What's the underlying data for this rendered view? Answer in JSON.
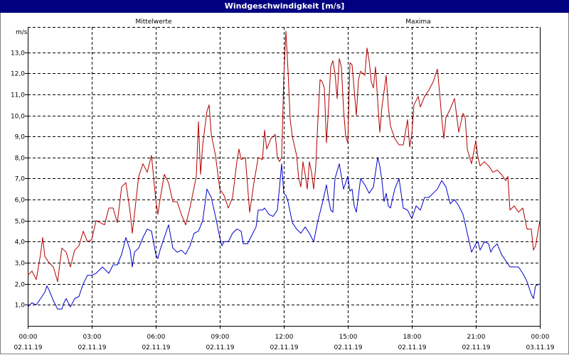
{
  "window": {
    "title": "Windgeschwindigkeit [m/s]"
  },
  "chart_data": {
    "type": "line",
    "title": "Windgeschwindigkeit [m/s]",
    "ylabel": "m/s",
    "xlabel": "",
    "ylim": [
      0,
      14.2
    ],
    "xlim_hours": [
      0,
      24
    ],
    "y_ticks": [
      1,
      2,
      3,
      4,
      5,
      6,
      7,
      8,
      9,
      10,
      11,
      12,
      13
    ],
    "y_tick_labels": [
      "1,0",
      "2,0",
      "3,0",
      "4,0",
      "5,0",
      "6,0",
      "7,0",
      "8,0",
      "9,0",
      "10,0",
      "11,0",
      "12,0",
      "13,0"
    ],
    "x_tick_times": [
      "00:00",
      "03:00",
      "06:00",
      "09:00",
      "12:00",
      "15:00",
      "18:00",
      "21:00",
      "00:00"
    ],
    "x_tick_dates": [
      "02.11.19",
      "02.11.19",
      "02.11.19",
      "02.11.19",
      "02.11.19",
      "02.11.19",
      "02.11.19",
      "02.11.19",
      "03.11.19"
    ],
    "grid": true,
    "colors": {
      "mittelwerte": "#0000cc",
      "maxima": "#b40000",
      "title_bar": "#000080"
    },
    "series": [
      {
        "name": "Mittelwerte",
        "color": "#0000cc",
        "points": [
          [
            0.0,
            0.9
          ],
          [
            0.2,
            1.1
          ],
          [
            0.4,
            1.0
          ],
          [
            0.6,
            1.3
          ],
          [
            0.8,
            1.6
          ],
          [
            0.9,
            1.9
          ],
          [
            1.0,
            1.7
          ],
          [
            1.2,
            1.2
          ],
          [
            1.4,
            0.8
          ],
          [
            1.6,
            0.8
          ],
          [
            1.7,
            1.1
          ],
          [
            1.8,
            1.3
          ],
          [
            2.0,
            0.9
          ],
          [
            2.2,
            1.3
          ],
          [
            2.4,
            1.4
          ],
          [
            2.6,
            2.0
          ],
          [
            2.8,
            2.4
          ],
          [
            3.0,
            2.4
          ],
          [
            3.2,
            2.5
          ],
          [
            3.4,
            2.7
          ],
          [
            3.5,
            2.8
          ],
          [
            3.6,
            2.7
          ],
          [
            3.8,
            2.5
          ],
          [
            4.0,
            2.9
          ],
          [
            4.2,
            2.9
          ],
          [
            4.4,
            3.4
          ],
          [
            4.6,
            4.2
          ],
          [
            4.8,
            3.6
          ],
          [
            4.9,
            2.8
          ],
          [
            5.0,
            3.5
          ],
          [
            5.2,
            3.7
          ],
          [
            5.4,
            4.2
          ],
          [
            5.6,
            4.6
          ],
          [
            5.8,
            4.5
          ],
          [
            6.0,
            3.4
          ],
          [
            6.1,
            3.2
          ],
          [
            6.2,
            3.6
          ],
          [
            6.4,
            4.2
          ],
          [
            6.6,
            4.8
          ],
          [
            6.8,
            3.7
          ],
          [
            7.0,
            3.5
          ],
          [
            7.2,
            3.6
          ],
          [
            7.4,
            3.4
          ],
          [
            7.6,
            3.8
          ],
          [
            7.8,
            4.4
          ],
          [
            8.0,
            4.5
          ],
          [
            8.2,
            5.0
          ],
          [
            8.4,
            6.5
          ],
          [
            8.6,
            6.1
          ],
          [
            8.8,
            5.2
          ],
          [
            9.0,
            4.2
          ],
          [
            9.1,
            3.8
          ],
          [
            9.2,
            4.0
          ],
          [
            9.4,
            4.0
          ],
          [
            9.6,
            4.4
          ],
          [
            9.8,
            4.6
          ],
          [
            10.0,
            4.5
          ],
          [
            10.1,
            3.9
          ],
          [
            10.3,
            3.9
          ],
          [
            10.5,
            4.3
          ],
          [
            10.7,
            4.7
          ],
          [
            10.8,
            5.5
          ],
          [
            11.0,
            5.5
          ],
          [
            11.1,
            5.6
          ],
          [
            11.3,
            5.3
          ],
          [
            11.5,
            5.2
          ],
          [
            11.7,
            5.5
          ],
          [
            11.9,
            7.7
          ],
          [
            12.0,
            6.3
          ],
          [
            12.1,
            6.2
          ],
          [
            12.2,
            5.9
          ],
          [
            12.4,
            4.9
          ],
          [
            12.6,
            4.6
          ],
          [
            12.8,
            4.4
          ],
          [
            13.0,
            4.7
          ],
          [
            13.2,
            4.4
          ],
          [
            13.4,
            4.0
          ],
          [
            13.6,
            5.0
          ],
          [
            13.8,
            5.8
          ],
          [
            14.0,
            6.7
          ],
          [
            14.1,
            6.0
          ],
          [
            14.2,
            5.5
          ],
          [
            14.3,
            5.4
          ],
          [
            14.4,
            7.0
          ],
          [
            14.6,
            7.7
          ],
          [
            14.8,
            6.5
          ],
          [
            15.0,
            7.1
          ],
          [
            15.1,
            6.4
          ],
          [
            15.2,
            6.5
          ],
          [
            15.3,
            5.7
          ],
          [
            15.4,
            5.4
          ],
          [
            15.6,
            7.0
          ],
          [
            15.8,
            6.7
          ],
          [
            16.0,
            6.3
          ],
          [
            16.2,
            6.6
          ],
          [
            16.4,
            8.0
          ],
          [
            16.5,
            7.6
          ],
          [
            16.6,
            6.9
          ],
          [
            16.7,
            5.9
          ],
          [
            16.8,
            6.3
          ],
          [
            16.9,
            5.7
          ],
          [
            17.0,
            5.6
          ],
          [
            17.2,
            6.5
          ],
          [
            17.4,
            7.0
          ],
          [
            17.6,
            5.6
          ],
          [
            17.8,
            5.5
          ],
          [
            18.0,
            5.1
          ],
          [
            18.2,
            5.7
          ],
          [
            18.4,
            5.5
          ],
          [
            18.6,
            6.1
          ],
          [
            18.8,
            6.1
          ],
          [
            19.0,
            6.3
          ],
          [
            19.2,
            6.5
          ],
          [
            19.4,
            6.9
          ],
          [
            19.6,
            6.6
          ],
          [
            19.8,
            5.8
          ],
          [
            20.0,
            6.0
          ],
          [
            20.2,
            5.7
          ],
          [
            20.4,
            5.3
          ],
          [
            20.6,
            4.4
          ],
          [
            20.8,
            3.5
          ],
          [
            21.0,
            3.9
          ],
          [
            21.1,
            4.0
          ],
          [
            21.2,
            3.6
          ],
          [
            21.4,
            4.0
          ],
          [
            21.6,
            3.9
          ],
          [
            21.7,
            3.5
          ],
          [
            21.8,
            3.7
          ],
          [
            22.0,
            3.9
          ],
          [
            22.2,
            3.4
          ],
          [
            22.4,
            3.1
          ],
          [
            22.6,
            2.8
          ],
          [
            22.8,
            2.8
          ],
          [
            23.0,
            2.8
          ],
          [
            23.2,
            2.5
          ],
          [
            23.4,
            2.1
          ],
          [
            23.6,
            1.5
          ],
          [
            23.7,
            1.3
          ],
          [
            23.8,
            1.9
          ],
          [
            24.0,
            2.0
          ]
        ]
      },
      {
        "name": "Maxima",
        "color": "#b40000",
        "points": [
          [
            0.0,
            2.4
          ],
          [
            0.2,
            2.6
          ],
          [
            0.4,
            2.2
          ],
          [
            0.6,
            3.4
          ],
          [
            0.7,
            4.2
          ],
          [
            0.8,
            3.3
          ],
          [
            1.0,
            3.0
          ],
          [
            1.2,
            2.8
          ],
          [
            1.4,
            2.1
          ],
          [
            1.6,
            3.7
          ],
          [
            1.8,
            3.5
          ],
          [
            2.0,
            2.8
          ],
          [
            2.2,
            3.6
          ],
          [
            2.4,
            3.8
          ],
          [
            2.6,
            4.5
          ],
          [
            2.8,
            4.0
          ],
          [
            3.0,
            4.1
          ],
          [
            3.2,
            5.0
          ],
          [
            3.4,
            4.9
          ],
          [
            3.6,
            4.8
          ],
          [
            3.8,
            5.6
          ],
          [
            4.0,
            5.6
          ],
          [
            4.2,
            4.9
          ],
          [
            4.4,
            6.6
          ],
          [
            4.6,
            6.8
          ],
          [
            4.8,
            5.4
          ],
          [
            4.9,
            4.4
          ],
          [
            5.0,
            5.3
          ],
          [
            5.2,
            7.1
          ],
          [
            5.4,
            7.7
          ],
          [
            5.6,
            7.3
          ],
          [
            5.8,
            8.1
          ],
          [
            6.0,
            6.0
          ],
          [
            6.1,
            5.3
          ],
          [
            6.2,
            6.0
          ],
          [
            6.4,
            7.2
          ],
          [
            6.6,
            6.8
          ],
          [
            6.8,
            5.9
          ],
          [
            7.0,
            5.9
          ],
          [
            7.2,
            5.3
          ],
          [
            7.4,
            4.8
          ],
          [
            7.6,
            5.6
          ],
          [
            7.8,
            6.6
          ],
          [
            7.9,
            7.1
          ],
          [
            8.0,
            9.7
          ],
          [
            8.1,
            7.2
          ],
          [
            8.2,
            8.6
          ],
          [
            8.4,
            10.2
          ],
          [
            8.5,
            10.5
          ],
          [
            8.6,
            9.1
          ],
          [
            8.8,
            8.1
          ],
          [
            9.0,
            6.5
          ],
          [
            9.2,
            6.2
          ],
          [
            9.4,
            5.6
          ],
          [
            9.6,
            6.1
          ],
          [
            9.8,
            7.8
          ],
          [
            9.9,
            8.4
          ],
          [
            10.0,
            7.9
          ],
          [
            10.2,
            8.0
          ],
          [
            10.4,
            5.4
          ],
          [
            10.6,
            6.8
          ],
          [
            10.8,
            8.0
          ],
          [
            11.0,
            7.9
          ],
          [
            11.1,
            9.3
          ],
          [
            11.2,
            8.4
          ],
          [
            11.4,
            8.9
          ],
          [
            11.6,
            9.1
          ],
          [
            11.7,
            8.0
          ],
          [
            11.8,
            7.8
          ],
          [
            11.9,
            8.0
          ],
          [
            12.0,
            11.8
          ],
          [
            12.1,
            14.0
          ],
          [
            12.2,
            12.1
          ],
          [
            12.3,
            9.8
          ],
          [
            12.4,
            9.0
          ],
          [
            12.6,
            8.1
          ],
          [
            12.7,
            7.0
          ],
          [
            12.8,
            6.6
          ],
          [
            12.9,
            7.8
          ],
          [
            13.0,
            7.2
          ],
          [
            13.1,
            6.5
          ],
          [
            13.2,
            7.8
          ],
          [
            13.3,
            7.3
          ],
          [
            13.4,
            6.5
          ],
          [
            13.5,
            7.6
          ],
          [
            13.6,
            9.8
          ],
          [
            13.7,
            11.7
          ],
          [
            13.8,
            11.6
          ],
          [
            13.9,
            11.3
          ],
          [
            14.0,
            8.7
          ],
          [
            14.1,
            10.4
          ],
          [
            14.2,
            12.3
          ],
          [
            14.3,
            12.6
          ],
          [
            14.4,
            12.0
          ],
          [
            14.5,
            10.8
          ],
          [
            14.6,
            12.7
          ],
          [
            14.7,
            12.3
          ],
          [
            14.8,
            10.3
          ],
          [
            14.9,
            9.0
          ],
          [
            15.0,
            8.7
          ],
          [
            15.1,
            12.5
          ],
          [
            15.2,
            12.4
          ],
          [
            15.3,
            11.2
          ],
          [
            15.4,
            10.0
          ],
          [
            15.5,
            11.7
          ],
          [
            15.6,
            12.1
          ],
          [
            15.8,
            11.9
          ],
          [
            15.9,
            13.2
          ],
          [
            16.0,
            12.6
          ],
          [
            16.1,
            11.6
          ],
          [
            16.2,
            11.3
          ],
          [
            16.3,
            12.3
          ],
          [
            16.4,
            10.7
          ],
          [
            16.5,
            9.2
          ],
          [
            16.6,
            10.4
          ],
          [
            16.8,
            11.9
          ],
          [
            16.9,
            10.4
          ],
          [
            17.0,
            9.5
          ],
          [
            17.2,
            8.9
          ],
          [
            17.4,
            8.6
          ],
          [
            17.6,
            8.6
          ],
          [
            17.8,
            9.8
          ],
          [
            17.9,
            8.5
          ],
          [
            18.0,
            9.1
          ],
          [
            18.1,
            10.5
          ],
          [
            18.3,
            10.9
          ],
          [
            18.4,
            10.4
          ],
          [
            18.6,
            10.9
          ],
          [
            18.8,
            11.2
          ],
          [
            19.0,
            11.6
          ],
          [
            19.2,
            12.2
          ],
          [
            19.3,
            11.1
          ],
          [
            19.4,
            9.9
          ],
          [
            19.5,
            8.9
          ],
          [
            19.6,
            9.9
          ],
          [
            19.8,
            10.3
          ],
          [
            20.0,
            10.8
          ],
          [
            20.2,
            9.2
          ],
          [
            20.4,
            10.1
          ],
          [
            20.5,
            9.9
          ],
          [
            20.6,
            8.4
          ],
          [
            20.8,
            7.7
          ],
          [
            21.0,
            8.8
          ],
          [
            21.1,
            8.0
          ],
          [
            21.2,
            7.6
          ],
          [
            21.4,
            7.8
          ],
          [
            21.6,
            7.6
          ],
          [
            21.8,
            7.3
          ],
          [
            22.0,
            7.4
          ],
          [
            22.2,
            7.2
          ],
          [
            22.4,
            6.9
          ],
          [
            22.5,
            7.1
          ],
          [
            22.6,
            5.5
          ],
          [
            22.8,
            5.7
          ],
          [
            23.0,
            5.4
          ],
          [
            23.2,
            5.6
          ],
          [
            23.4,
            4.6
          ],
          [
            23.6,
            4.6
          ],
          [
            23.7,
            3.6
          ],
          [
            23.8,
            3.8
          ],
          [
            24.0,
            5.0
          ]
        ]
      }
    ]
  }
}
